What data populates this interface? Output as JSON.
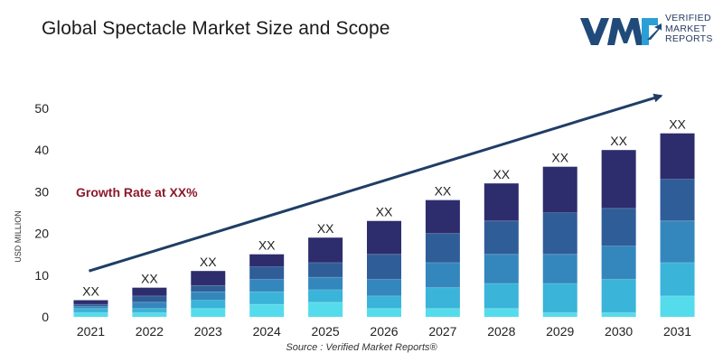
{
  "title": "Global Spectacle Market Size and Scope",
  "logo": {
    "mark": "VMR",
    "lines": [
      "VERIFIED",
      "MARKET",
      "REPORTS"
    ]
  },
  "annotation": "Growth Rate at XX%",
  "source": "Source :  Verified Market Reports®",
  "colors": {
    "navy": "#2d2d6d",
    "steel_dark": "#2f5d98",
    "steel": "#3487bd",
    "sky": "#3ab4d8",
    "cyan": "#55dcec",
    "arrow": "#1f3e66",
    "annotation": "#8b1a2b"
  },
  "chart_data": {
    "type": "bar",
    "stacked": true,
    "title": "Global Spectacle Market Size and Scope",
    "xlabel": "",
    "ylabel": "USD MILLION",
    "ylim": [
      0,
      50
    ],
    "yticks": [
      0,
      10,
      20,
      30,
      40,
      50
    ],
    "categories": [
      "2021",
      "2022",
      "2023",
      "2024",
      "2025",
      "2026",
      "2027",
      "2028",
      "2029",
      "2030",
      "2031"
    ],
    "totals": [
      4,
      7,
      11,
      15,
      19,
      23,
      28,
      32,
      36,
      40,
      44
    ],
    "data_labels": [
      "XX",
      "XX",
      "XX",
      "XX",
      "XX",
      "XX",
      "XX",
      "XX",
      "XX",
      "XX",
      "XX"
    ],
    "series": [
      {
        "name": "segment-1",
        "color": "#55dcec",
        "values": [
          1,
          1,
          2,
          3,
          3.5,
          2,
          2,
          2,
          1,
          1,
          5
        ]
      },
      {
        "name": "segment-2",
        "color": "#3ab4d8",
        "values": [
          1,
          1,
          2,
          3,
          3,
          3,
          5,
          6,
          7,
          8,
          8
        ]
      },
      {
        "name": "segment-3",
        "color": "#3487bd",
        "values": [
          0.5,
          1.5,
          2,
          3,
          3,
          4,
          6,
          7,
          7,
          8,
          10
        ]
      },
      {
        "name": "segment-4",
        "color": "#2f5d98",
        "values": [
          0.5,
          1.5,
          1.5,
          3,
          3.5,
          6,
          7,
          8,
          10,
          9,
          10
        ]
      },
      {
        "name": "segment-5",
        "color": "#2d2d6d",
        "values": [
          1,
          2,
          3.5,
          3,
          6,
          8,
          8,
          9,
          11,
          14,
          11
        ]
      }
    ],
    "trend_arrow": {
      "from_value": 11,
      "to_value": 53
    },
    "legend": "none",
    "grid": false
  }
}
